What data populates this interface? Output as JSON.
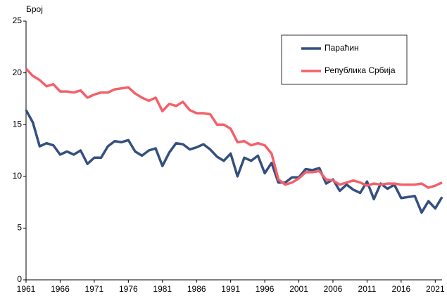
{
  "chart_data": {
    "type": "line",
    "y_label": "Број",
    "x": [
      1961,
      1962,
      1963,
      1964,
      1965,
      1966,
      1967,
      1968,
      1969,
      1970,
      1971,
      1972,
      1973,
      1974,
      1975,
      1976,
      1977,
      1978,
      1979,
      1980,
      1981,
      1982,
      1983,
      1984,
      1985,
      1986,
      1987,
      1988,
      1989,
      1990,
      1991,
      1992,
      1993,
      1994,
      1995,
      1996,
      1997,
      1998,
      1999,
      2000,
      2001,
      2002,
      2003,
      2004,
      2005,
      2006,
      2007,
      2008,
      2009,
      2010,
      2011,
      2012,
      2013,
      2014,
      2015,
      2016,
      2017,
      2018,
      2019,
      2020,
      2021,
      2022
    ],
    "series": [
      {
        "name": "Параћин",
        "color": "#34507e",
        "values": [
          16.4,
          15.2,
          12.9,
          13.2,
          13.0,
          12.1,
          12.4,
          12.1,
          12.5,
          11.2,
          11.8,
          11.8,
          12.9,
          13.4,
          13.3,
          13.5,
          12.4,
          12.0,
          12.5,
          12.7,
          11.0,
          12.3,
          13.2,
          13.1,
          12.6,
          12.8,
          13.1,
          12.6,
          11.9,
          11.5,
          12.2,
          10.0,
          11.8,
          11.5,
          12.0,
          10.3,
          11.3,
          9.4,
          9.4,
          9.9,
          9.9,
          10.7,
          10.6,
          10.8,
          9.3,
          9.7,
          8.6,
          9.2,
          8.7,
          8.4,
          9.5,
          7.8,
          9.3,
          8.8,
          9.2,
          7.9,
          8.0,
          8.1,
          6.5,
          7.6,
          6.9,
          8.0
        ]
      },
      {
        "name": "Република Србија",
        "color": "#f4606a",
        "values": [
          20.4,
          19.7,
          19.3,
          18.7,
          18.9,
          18.2,
          18.2,
          18.1,
          18.3,
          17.6,
          17.9,
          18.1,
          18.1,
          18.4,
          18.5,
          18.6,
          18.0,
          17.6,
          17.3,
          17.6,
          16.3,
          17.0,
          16.8,
          17.2,
          16.4,
          16.1,
          16.1,
          16.0,
          15.0,
          15.0,
          14.6,
          13.3,
          13.4,
          13.0,
          13.2,
          13.0,
          12.2,
          9.7,
          9.2,
          9.4,
          9.8,
          10.4,
          10.4,
          10.5,
          9.7,
          9.6,
          9.2,
          9.4,
          9.6,
          9.4,
          9.1,
          9.3,
          9.2,
          9.3,
          9.3,
          9.2,
          9.2,
          9.2,
          9.3,
          8.9,
          9.1,
          9.4
        ]
      }
    ],
    "xlim": [
      1961,
      2022
    ],
    "xticks": [
      1961,
      1966,
      1971,
      1976,
      1981,
      1986,
      1991,
      1996,
      2001,
      2006,
      2011,
      2016,
      2021
    ],
    "ylim": [
      0,
      25
    ],
    "yticks": [
      0,
      5,
      10,
      15,
      20,
      25
    ],
    "grid": false,
    "legend": "top right"
  }
}
